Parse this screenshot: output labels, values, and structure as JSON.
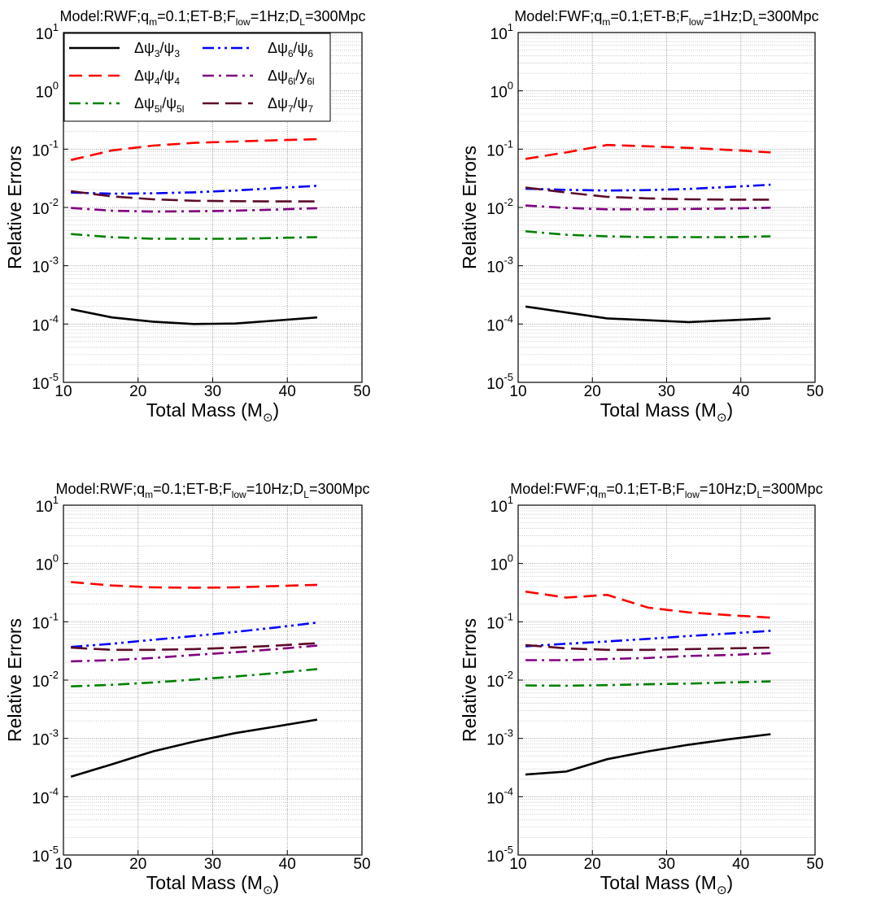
{
  "figure": {
    "sub_sup_labels": {
      "x_unit_sub": "⊙"
    }
  },
  "chart_data": [
    {
      "type": "line",
      "title": {
        "pre": "Model:RWF;q",
        "sub1": "m",
        "mid1": "=0.1;ET-B;F",
        "sub2": "low",
        "mid2": "=1Hz;D",
        "sub3": "L",
        "post": "=300Mpc"
      },
      "xlabel": "Total Mass (M",
      "xlabel_close": ")",
      "ylabel": "Relative Errors",
      "xlim": [
        10,
        50
      ],
      "ylim": [
        1e-05,
        10
      ],
      "yscale": "log",
      "grid": true,
      "xticks": [
        "10",
        "20",
        "30",
        "40",
        "50"
      ],
      "legend": true,
      "legend_placement": "top-left",
      "series": [
        {
          "key": "psi3",
          "color": "#000000",
          "dash": "solid",
          "x": [
            11,
            16.5,
            22,
            27.5,
            33,
            38.5,
            44
          ],
          "y": [
            0.00018,
            0.00013,
            0.00011,
            0.0001,
            0.000102,
            0.000115,
            0.00013
          ]
        },
        {
          "key": "psi4",
          "color": "#ff0000",
          "dash": "dashed",
          "x": [
            11,
            16.5,
            22,
            27.5,
            33,
            38.5,
            44
          ],
          "y": [
            0.065,
            0.095,
            0.115,
            0.128,
            0.135,
            0.142,
            0.148
          ]
        },
        {
          "key": "psi5l",
          "color": "#008000",
          "dash": "dashdot",
          "x": [
            11,
            16.5,
            22,
            27.5,
            33,
            38.5,
            44
          ],
          "y": [
            0.0035,
            0.0031,
            0.0029,
            0.0029,
            0.0029,
            0.003,
            0.0031
          ]
        },
        {
          "key": "psi6",
          "color": "#0000ff",
          "dash": "dashdotdot",
          "x": [
            11,
            16.5,
            22,
            27.5,
            33,
            38.5,
            44
          ],
          "y": [
            0.018,
            0.0172,
            0.0175,
            0.0182,
            0.0195,
            0.0215,
            0.0235
          ]
        },
        {
          "key": "psi6l",
          "color": "#800080",
          "dash": "dashdot",
          "x": [
            11,
            16.5,
            22,
            27.5,
            33,
            38.5,
            44
          ],
          "y": [
            0.0098,
            0.0088,
            0.0085,
            0.0086,
            0.0088,
            0.0092,
            0.0097
          ]
        },
        {
          "key": "psi7",
          "color": "#5c0a2a",
          "dash": "longdash",
          "x": [
            11,
            16.5,
            22,
            27.5,
            33,
            38.5,
            44
          ],
          "y": [
            0.019,
            0.0155,
            0.0138,
            0.013,
            0.0128,
            0.0127,
            0.0127
          ]
        }
      ]
    },
    {
      "type": "line",
      "title": {
        "pre": "Model:FWF;q",
        "sub1": "m",
        "mid1": "=0.1;ET-B;F",
        "sub2": "low",
        "mid2": "=1Hz;D",
        "sub3": "L",
        "post": "=300Mpc"
      },
      "xlabel": "Total Mass (M",
      "xlabel_close": ")",
      "ylabel": "Relative Errors",
      "xlim": [
        10,
        50
      ],
      "ylim": [
        1e-05,
        10
      ],
      "yscale": "log",
      "grid": true,
      "xticks": [
        "10",
        "20",
        "30",
        "40",
        "50"
      ],
      "legend": false,
      "series": [
        {
          "key": "psi3",
          "color": "#000000",
          "dash": "solid",
          "x": [
            11,
            22,
            33,
            44
          ],
          "y": [
            0.0002,
            0.000125,
            0.000108,
            0.000125
          ]
        },
        {
          "key": "psi4",
          "color": "#ff0000",
          "dash": "dashed",
          "x": [
            11,
            16.5,
            22,
            27.5,
            33,
            38.5,
            44
          ],
          "y": [
            0.068,
            0.088,
            0.118,
            0.112,
            0.105,
            0.097,
            0.088
          ]
        },
        {
          "key": "psi5l",
          "color": "#008000",
          "dash": "dashdot",
          "x": [
            11,
            16.5,
            22,
            27.5,
            33,
            38.5,
            44
          ],
          "y": [
            0.0039,
            0.0034,
            0.0032,
            0.0031,
            0.0031,
            0.0031,
            0.0032
          ]
        },
        {
          "key": "psi6",
          "color": "#0000ff",
          "dash": "dashdotdot",
          "x": [
            11,
            16.5,
            22,
            27.5,
            33,
            38.5,
            44
          ],
          "y": [
            0.021,
            0.02,
            0.0195,
            0.0198,
            0.0208,
            0.0225,
            0.0245
          ]
        },
        {
          "key": "psi6l",
          "color": "#800080",
          "dash": "dashdot",
          "x": [
            11,
            16.5,
            22,
            27.5,
            33,
            38.5,
            44
          ],
          "y": [
            0.0108,
            0.0098,
            0.0093,
            0.0093,
            0.0094,
            0.0096,
            0.0099
          ]
        },
        {
          "key": "psi7",
          "color": "#5c0a2a",
          "dash": "longdash",
          "x": [
            11,
            16.5,
            22,
            27.5,
            33,
            38.5,
            44
          ],
          "y": [
            0.022,
            0.018,
            0.0152,
            0.0143,
            0.0138,
            0.0136,
            0.0136
          ]
        }
      ]
    },
    {
      "type": "line",
      "title": {
        "pre": "Model:RWF;q",
        "sub1": "m",
        "mid1": "=0.1;ET-B;F",
        "sub2": "low",
        "mid2": "=10Hz;D",
        "sub3": "L",
        "post": "=300Mpc"
      },
      "xlabel": "Total Mass (M",
      "xlabel_close": ")",
      "ylabel": "Relative Errors",
      "xlim": [
        10,
        50
      ],
      "ylim": [
        1e-05,
        10
      ],
      "yscale": "log",
      "grid": true,
      "xticks": [
        "10",
        "20",
        "30",
        "40",
        "50"
      ],
      "legend": false,
      "series": [
        {
          "key": "psi3",
          "color": "#000000",
          "dash": "solid",
          "x": [
            11,
            16.5,
            22,
            27.5,
            33,
            38.5,
            44
          ],
          "y": [
            0.00022,
            0.00036,
            0.0006,
            0.00088,
            0.00123,
            0.0016,
            0.0021
          ]
        },
        {
          "key": "psi4",
          "color": "#ff0000",
          "dash": "dashed",
          "x": [
            11,
            16.5,
            22,
            27.5,
            33,
            38.5,
            44
          ],
          "y": [
            0.48,
            0.42,
            0.39,
            0.385,
            0.39,
            0.41,
            0.43
          ]
        },
        {
          "key": "psi5l",
          "color": "#008000",
          "dash": "dashdot",
          "x": [
            11,
            16.5,
            22,
            27.5,
            33,
            38.5,
            44
          ],
          "y": [
            0.0078,
            0.0083,
            0.0091,
            0.0102,
            0.0115,
            0.0132,
            0.0155
          ]
        },
        {
          "key": "psi6",
          "color": "#0000ff",
          "dash": "dashdotdot",
          "x": [
            11,
            16.5,
            22,
            27.5,
            33,
            38.5,
            44
          ],
          "y": [
            0.037,
            0.042,
            0.049,
            0.057,
            0.067,
            0.08,
            0.097
          ]
        },
        {
          "key": "psi6l",
          "color": "#800080",
          "dash": "dashdot",
          "x": [
            11,
            16.5,
            22,
            27.5,
            33,
            38.5,
            44
          ],
          "y": [
            0.021,
            0.022,
            0.024,
            0.027,
            0.03,
            0.034,
            0.039
          ]
        },
        {
          "key": "psi7",
          "color": "#5c0a2a",
          "dash": "longdash",
          "x": [
            11,
            16.5,
            22,
            27.5,
            33,
            38.5,
            44
          ],
          "y": [
            0.036,
            0.033,
            0.033,
            0.034,
            0.036,
            0.039,
            0.043
          ]
        }
      ]
    },
    {
      "type": "line",
      "title": {
        "pre": "Model:FWF;q",
        "sub1": "m",
        "mid1": "=0.1;ET-B;F",
        "sub2": "low",
        "mid2": "=10Hz;D",
        "sub3": "L",
        "post": "=300Mpc"
      },
      "xlabel": "Total Mass (M",
      "xlabel_close": ")",
      "ylabel": "Relative Errors",
      "xlim": [
        10,
        50
      ],
      "ylim": [
        1e-05,
        10
      ],
      "yscale": "log",
      "grid": true,
      "xticks": [
        "10",
        "20",
        "30",
        "40",
        "50"
      ],
      "legend": false,
      "series": [
        {
          "key": "psi3",
          "color": "#000000",
          "dash": "solid",
          "x": [
            11,
            16.5,
            22,
            27.5,
            33,
            38.5,
            44
          ],
          "y": [
            0.00024,
            0.00027,
            0.00044,
            0.0006,
            0.00078,
            0.00097,
            0.00118
          ]
        },
        {
          "key": "psi4",
          "color": "#ff0000",
          "dash": "dashed",
          "x": [
            11,
            16.5,
            22,
            27.5,
            33,
            38.5,
            44
          ],
          "y": [
            0.33,
            0.26,
            0.29,
            0.175,
            0.145,
            0.13,
            0.118
          ]
        },
        {
          "key": "psi5l",
          "color": "#008000",
          "dash": "dashdot",
          "x": [
            11,
            16.5,
            22,
            27.5,
            33,
            38.5,
            44
          ],
          "y": [
            0.0081,
            0.008,
            0.0082,
            0.0085,
            0.0087,
            0.0091,
            0.0095
          ]
        },
        {
          "key": "psi6",
          "color": "#0000ff",
          "dash": "dashdotdot",
          "x": [
            11,
            16.5,
            22,
            27.5,
            33,
            38.5,
            44
          ],
          "y": [
            0.038,
            0.042,
            0.046,
            0.051,
            0.057,
            0.063,
            0.07
          ]
        },
        {
          "key": "psi6l",
          "color": "#800080",
          "dash": "dashdot",
          "x": [
            11,
            16.5,
            22,
            27.5,
            33,
            38.5,
            44
          ],
          "y": [
            0.022,
            0.022,
            0.023,
            0.024,
            0.026,
            0.027,
            0.029
          ]
        },
        {
          "key": "psi7",
          "color": "#5c0a2a",
          "dash": "longdash",
          "x": [
            11,
            16.5,
            22,
            27.5,
            33,
            38.5,
            44
          ],
          "y": [
            0.04,
            0.035,
            0.033,
            0.033,
            0.034,
            0.035,
            0.036
          ]
        }
      ]
    }
  ],
  "legend": {
    "entries": [
      {
        "key": "psi3",
        "color": "#000000",
        "dash": "solid",
        "num": "Δψ",
        "num_sub": "3",
        "den": "/ψ",
        "den_sub": "3"
      },
      {
        "key": "psi4",
        "color": "#ff0000",
        "dash": "dashed",
        "num": "Δψ",
        "num_sub": "4",
        "den": "/ψ",
        "den_sub": "4"
      },
      {
        "key": "psi5l",
        "color": "#008000",
        "dash": "dashdot",
        "num": "Δψ",
        "num_sub": "5l",
        "den": "/ψ",
        "den_sub": "5l"
      },
      {
        "key": "psi6",
        "color": "#0000ff",
        "dash": "dashdotdot",
        "num": "Δψ",
        "num_sub": "6",
        "den": "/ψ",
        "den_sub": "6"
      },
      {
        "key": "psi6l",
        "color": "#800080",
        "dash": "dashdot",
        "num": "Δψ",
        "num_sub": "6l",
        "den": "/y",
        "den_sub": "6l"
      },
      {
        "key": "psi7",
        "color": "#5c0a2a",
        "dash": "longdash",
        "num": "Δψ",
        "num_sub": "7",
        "den": "/ψ",
        "den_sub": "7"
      }
    ]
  }
}
